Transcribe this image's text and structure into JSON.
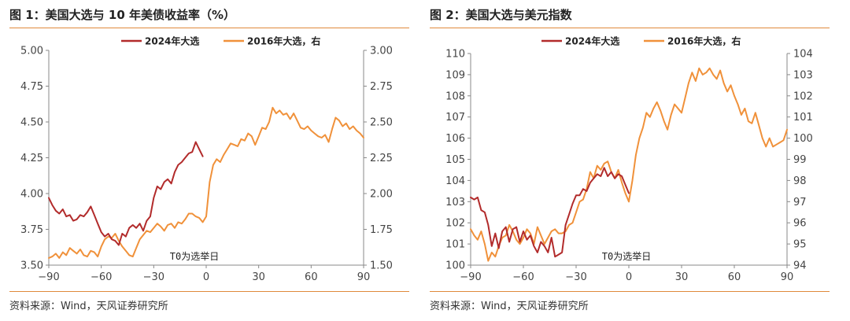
{
  "colors": {
    "series_2024": "#b22b2b",
    "series_2016": "#f0913a",
    "rule": "#e08a3c"
  },
  "chart_data": [
    {
      "type": "line",
      "title": "图 1：美国大选与 10 年美债收益率（%）",
      "source": "资料来源：Wind，天风证券研究所",
      "annotation": "T0为选举日",
      "xlim": [
        -90,
        90
      ],
      "x_ticks": [
        "−90",
        "−60",
        "−30",
        "0",
        "30",
        "60",
        "90"
      ],
      "ylim_left": [
        3.5,
        5.0
      ],
      "y_ticks_left": [
        "5.00",
        "4.75",
        "4.50",
        "4.25",
        "4.00",
        "3.75",
        "3.50"
      ],
      "ylim_right": [
        1.5,
        3.0
      ],
      "y_ticks_right": [
        "3.00",
        "2.75",
        "2.50",
        "2.25",
        "2.00",
        "1.75",
        "1.50"
      ],
      "legend_position": "top",
      "series": [
        {
          "name": "2024年大选",
          "axis": "left",
          "color": "#b22b2b",
          "x": [
            -90,
            -88,
            -86,
            -84,
            -82,
            -80,
            -78,
            -76,
            -74,
            -72,
            -70,
            -68,
            -66,
            -64,
            -62,
            -60,
            -58,
            -56,
            -54,
            -52,
            -50,
            -48,
            -46,
            -44,
            -42,
            -40,
            -38,
            -36,
            -34,
            -32,
            -30,
            -28,
            -26,
            -24,
            -22,
            -20,
            -18,
            -16,
            -14,
            -12,
            -10,
            -8,
            -6,
            -4,
            -2
          ],
          "y": [
            3.97,
            3.92,
            3.88,
            3.86,
            3.89,
            3.84,
            3.85,
            3.81,
            3.82,
            3.85,
            3.84,
            3.87,
            3.91,
            3.85,
            3.79,
            3.73,
            3.7,
            3.72,
            3.68,
            3.67,
            3.64,
            3.72,
            3.7,
            3.76,
            3.78,
            3.76,
            3.79,
            3.74,
            3.81,
            3.84,
            3.97,
            4.05,
            4.03,
            4.08,
            4.1,
            4.07,
            4.15,
            4.2,
            4.22,
            4.25,
            4.28,
            4.29,
            4.36,
            4.31,
            4.26
          ]
        },
        {
          "name": "2016年大选，右",
          "axis": "right",
          "color": "#f0913a",
          "x": [
            -90,
            -88,
            -86,
            -84,
            -82,
            -80,
            -78,
            -76,
            -74,
            -72,
            -70,
            -68,
            -66,
            -64,
            -62,
            -60,
            -58,
            -56,
            -54,
            -52,
            -50,
            -48,
            -46,
            -44,
            -42,
            -40,
            -38,
            -36,
            -34,
            -32,
            -30,
            -28,
            -26,
            -24,
            -22,
            -20,
            -18,
            -16,
            -14,
            -12,
            -10,
            -8,
            -6,
            -4,
            -2,
            0,
            2,
            4,
            6,
            8,
            10,
            12,
            14,
            16,
            18,
            20,
            22,
            24,
            26,
            28,
            30,
            32,
            34,
            36,
            38,
            40,
            42,
            44,
            46,
            48,
            50,
            52,
            54,
            56,
            58,
            60,
            62,
            64,
            66,
            68,
            70,
            72,
            74,
            76,
            78,
            80,
            82,
            84,
            86,
            88,
            90
          ],
          "y": [
            1.55,
            1.56,
            1.58,
            1.55,
            1.59,
            1.57,
            1.62,
            1.6,
            1.58,
            1.61,
            1.57,
            1.56,
            1.6,
            1.59,
            1.56,
            1.63,
            1.68,
            1.7,
            1.69,
            1.72,
            1.67,
            1.63,
            1.6,
            1.57,
            1.56,
            1.62,
            1.68,
            1.71,
            1.74,
            1.73,
            1.76,
            1.79,
            1.77,
            1.74,
            1.78,
            1.79,
            1.76,
            1.8,
            1.79,
            1.82,
            1.86,
            1.86,
            1.84,
            1.83,
            1.8,
            1.84,
            2.08,
            2.2,
            2.24,
            2.22,
            2.27,
            2.31,
            2.35,
            2.34,
            2.33,
            2.38,
            2.37,
            2.42,
            2.4,
            2.34,
            2.4,
            2.46,
            2.45,
            2.5,
            2.6,
            2.56,
            2.58,
            2.55,
            2.56,
            2.52,
            2.56,
            2.51,
            2.46,
            2.45,
            2.47,
            2.44,
            2.42,
            2.4,
            2.39,
            2.41,
            2.36,
            2.45,
            2.53,
            2.51,
            2.47,
            2.49,
            2.45,
            2.47,
            2.44,
            2.42,
            2.39
          ]
        }
      ]
    },
    {
      "type": "line",
      "title": "图 2：美国大选与美元指数",
      "source": "资料来源：Wind，天风证券研究所",
      "annotation": "T0为选举日",
      "xlim": [
        -90,
        90
      ],
      "x_ticks": [
        "−90",
        "−60",
        "−30",
        "0",
        "30",
        "60",
        "90"
      ],
      "ylim_left": [
        100,
        110
      ],
      "y_ticks_left": [
        "110",
        "109",
        "108",
        "107",
        "106",
        "105",
        "104",
        "103",
        "102",
        "101",
        "100"
      ],
      "ylim_right": [
        94,
        104
      ],
      "y_ticks_right": [
        "104",
        "103",
        "102",
        "101",
        "100",
        "99",
        "98",
        "97",
        "96",
        "95",
        "94"
      ],
      "legend_position": "top",
      "series": [
        {
          "name": "2024年大选",
          "axis": "left",
          "color": "#b22b2b",
          "x": [
            -90,
            -88,
            -86,
            -84,
            -82,
            -80,
            -78,
            -76,
            -74,
            -72,
            -70,
            -68,
            -66,
            -64,
            -62,
            -60,
            -58,
            -56,
            -54,
            -52,
            -50,
            -48,
            -46,
            -44,
            -42,
            -40,
            -38,
            -36,
            -34,
            -32,
            -30,
            -28,
            -26,
            -24,
            -22,
            -20,
            -18,
            -16,
            -14,
            -12,
            -10,
            -8,
            -6,
            -4,
            -2,
            0
          ],
          "y": [
            103.2,
            103.1,
            103.2,
            102.6,
            102.5,
            101.9,
            100.9,
            101.5,
            100.8,
            101.6,
            101.8,
            101.1,
            101.7,
            101.8,
            101.1,
            101.6,
            101.2,
            101.4,
            100.9,
            100.6,
            101.1,
            100.9,
            100.6,
            101.3,
            100.4,
            100.5,
            100.6,
            101.9,
            102.4,
            102.9,
            103.3,
            103.3,
            103.6,
            103.5,
            103.9,
            104.1,
            104.3,
            104.2,
            104.6,
            104.2,
            104.4,
            104.1,
            104.3,
            104.2,
            103.8,
            103.4
          ]
        },
        {
          "name": "2016年大选，右",
          "axis": "right",
          "color": "#f0913a",
          "x": [
            -90,
            -88,
            -86,
            -84,
            -82,
            -80,
            -78,
            -76,
            -74,
            -72,
            -70,
            -68,
            -66,
            -64,
            -62,
            -60,
            -58,
            -56,
            -54,
            -52,
            -50,
            -48,
            -46,
            -44,
            -42,
            -40,
            -38,
            -36,
            -34,
            -32,
            -30,
            -28,
            -26,
            -24,
            -22,
            -20,
            -18,
            -16,
            -14,
            -12,
            -10,
            -8,
            -6,
            -4,
            -2,
            0,
            2,
            4,
            6,
            8,
            10,
            12,
            14,
            16,
            18,
            20,
            22,
            24,
            26,
            28,
            30,
            32,
            34,
            36,
            38,
            40,
            42,
            44,
            46,
            48,
            50,
            52,
            54,
            56,
            58,
            60,
            62,
            64,
            66,
            68,
            70,
            72,
            74,
            76,
            78,
            80,
            82,
            84,
            86,
            88,
            90
          ],
          "y": [
            95.7,
            95.4,
            95.2,
            95.6,
            95.0,
            94.2,
            94.6,
            94.4,
            94.9,
            95.3,
            95.4,
            95.9,
            95.6,
            95.2,
            95.0,
            95.3,
            95.7,
            95.5,
            95.0,
            95.8,
            95.4,
            95.0,
            95.3,
            95.6,
            95.7,
            95.5,
            95.5,
            95.6,
            95.9,
            96.0,
            96.5,
            97.0,
            97.1,
            97.6,
            98.4,
            98.1,
            98.7,
            98.5,
            98.8,
            98.9,
            98.4,
            98.1,
            98.5,
            97.9,
            97.4,
            97.0,
            98.0,
            99.2,
            100.0,
            100.5,
            101.2,
            101.0,
            101.4,
            101.7,
            101.3,
            100.8,
            100.4,
            101.1,
            101.6,
            101.4,
            101.2,
            101.9,
            102.6,
            103.1,
            102.7,
            103.3,
            103.0,
            103.1,
            103.3,
            103.0,
            102.8,
            103.2,
            102.6,
            102.2,
            102.5,
            102.0,
            101.6,
            101.1,
            101.4,
            100.8,
            100.7,
            101.2,
            100.6,
            100.0,
            99.6,
            100.0,
            99.6,
            99.7,
            99.8,
            99.9,
            100.4
          ]
        }
      ]
    }
  ]
}
